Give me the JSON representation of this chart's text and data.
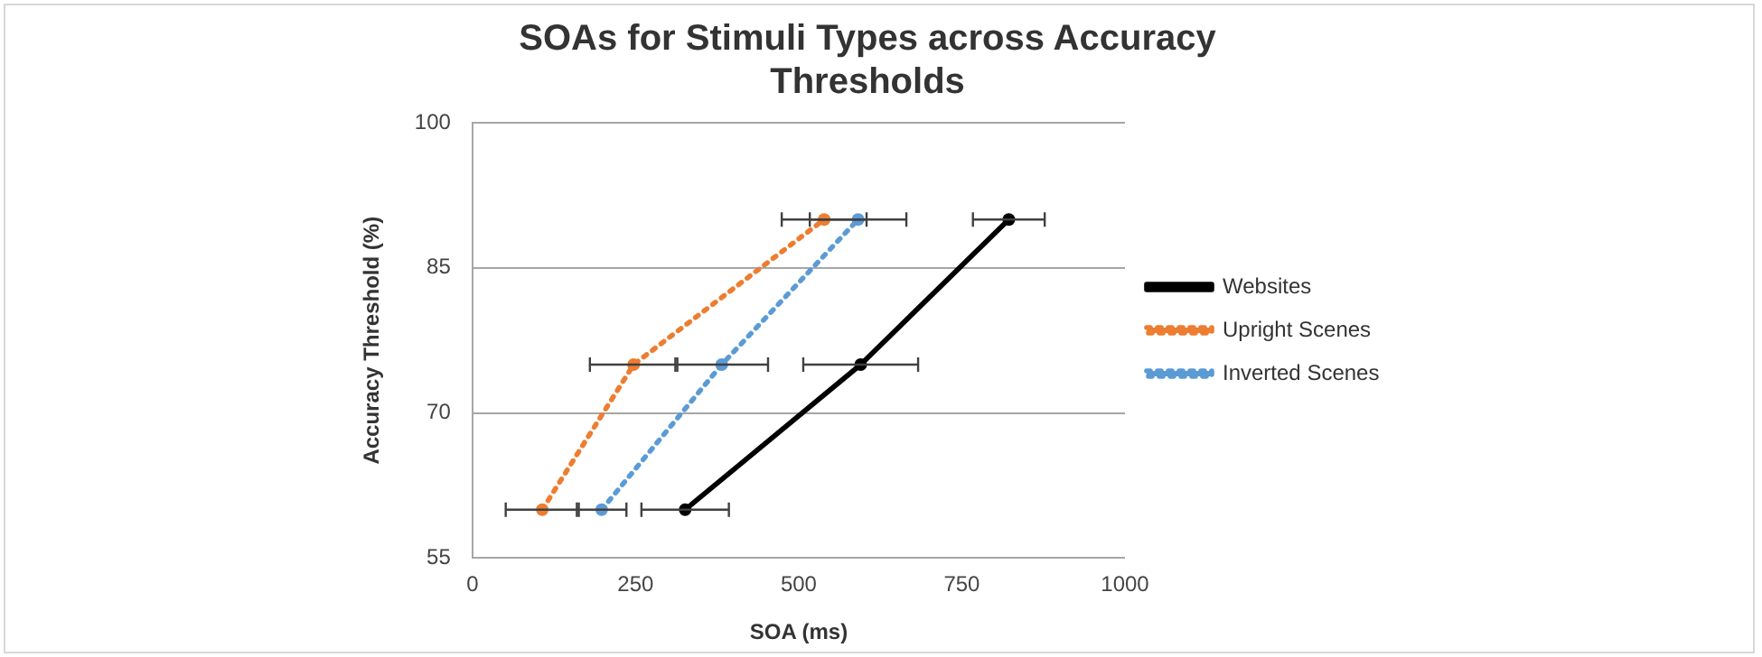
{
  "chart_data": {
    "type": "line",
    "title": "SOAs for Stimuli Types across Accuracy Thresholds",
    "xlabel": "SOA (ms)",
    "ylabel": "Accuracy Threshold (%)",
    "xlim": [
      0,
      1000
    ],
    "xticks": [
      0,
      250,
      500,
      750,
      1000
    ],
    "ylim": [
      55,
      100
    ],
    "yticks": [
      55,
      70,
      85,
      100
    ],
    "series": [
      {
        "name": "Websites",
        "color": "#000000",
        "line_style": "solid",
        "x": [
          326,
          595,
          822
        ],
        "values": [
          60,
          75,
          90
        ],
        "xerrors": [
          67,
          88,
          55
        ]
      },
      {
        "name": "Upright Scenes",
        "color": "#ed7d31",
        "line_style": "dotted",
        "x": [
          107,
          247,
          539
        ],
        "values": [
          60,
          75,
          90
        ],
        "xerrors": [
          56,
          67,
          65
        ]
      },
      {
        "name": "Inverted Scenes",
        "color": "#5b9bd5",
        "line_style": "dotted",
        "x": [
          198,
          382,
          591
        ],
        "values": [
          60,
          75,
          90
        ],
        "xerrors": [
          38,
          71,
          74
        ]
      }
    ],
    "marker": "circle",
    "grid": "y",
    "legend": "right"
  }
}
